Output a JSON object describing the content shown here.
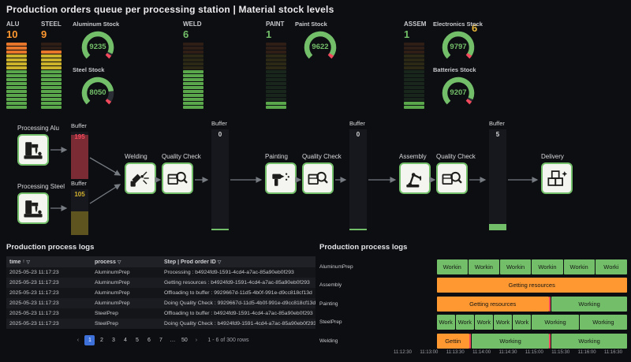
{
  "title": "Production orders queue per processing station | Material stock levels",
  "colors": {
    "green": "#73bf69",
    "orange": "#ff9830",
    "yellow": "#eab839",
    "red": "#f2495c",
    "blue": "#3d71d9",
    "gauge_track": "#2c3036",
    "seg_green": "#5aa64b",
    "seg_yellow": "#ccb22a",
    "seg_orange": "#e8762a"
  },
  "stats": [
    {
      "id": "alu",
      "label": "ALU",
      "value": "10",
      "color": "#ff9830",
      "ratio": 1.0
    },
    {
      "id": "steel",
      "label": "STEEL",
      "value": "9",
      "color": "#ff9830",
      "ratio": 0.9
    },
    {
      "id": "weld",
      "label": "WELD",
      "value": "6",
      "color": "#73bf69",
      "ratio": 0.6
    },
    {
      "id": "paint",
      "label": "PAINT",
      "value": "1",
      "color": "#73bf69",
      "ratio": 0.1
    },
    {
      "id": "assem",
      "label": "ASSEM",
      "value": "1",
      "color": "#73bf69",
      "ratio": 0.1
    }
  ],
  "extra_stat": {
    "value": "6",
    "color": "#eab839"
  },
  "gauges": [
    {
      "label": "Aluminum Stock",
      "value": 9235,
      "max": 10000
    },
    {
      "label": "Steel Stock",
      "value": 8050,
      "max": 10000
    },
    {
      "label": "Paint Stock",
      "value": 9622,
      "max": 10000
    },
    {
      "label": "Electronics Stock",
      "value": 9797,
      "max": 10000
    },
    {
      "label": "Batteries Stock",
      "value": 9207,
      "max": 10000
    }
  ],
  "flow": {
    "stations": [
      {
        "label": "Processing Alu",
        "icon": "milling-machine"
      },
      {
        "label": "Processing Steel",
        "icon": "milling-machine"
      },
      {
        "label": "Welding",
        "icon": "welding"
      },
      {
        "label": "Quality Check",
        "icon": "quality-check"
      },
      {
        "label": "Painting",
        "icon": "painting"
      },
      {
        "label": "Quality Check",
        "icon": "quality-check"
      },
      {
        "label": "Assembly",
        "icon": "assembly"
      },
      {
        "label": "Quality Check",
        "icon": "quality-check"
      },
      {
        "label": "Delivery",
        "icon": "delivery"
      }
    ],
    "buffers": [
      {
        "label": "Buffer",
        "value": "195",
        "value_color": "#f2495c",
        "fill_pct": 93,
        "fill_color": "#7a2b33",
        "baseline": false
      },
      {
        "label": "Buffer",
        "value": "105",
        "value_color": "#d2b12e",
        "fill_pct": 52,
        "fill_color": "#5d541f",
        "baseline": false
      },
      {
        "label": "Buffer",
        "value": "0",
        "value_color": "#d8d9da",
        "fill_pct": 0,
        "fill_color": "#73bf69",
        "baseline": true
      },
      {
        "label": "Buffer",
        "value": "0",
        "value_color": "#d8d9da",
        "fill_pct": 0,
        "fill_color": "#73bf69",
        "baseline": true
      },
      {
        "label": "Buffer",
        "value": "5",
        "value_color": "#d8d9da",
        "fill_pct": 5,
        "fill_color": "#73bf69",
        "baseline": true
      }
    ]
  },
  "logs_table": {
    "title": "Production process logs",
    "sort_icon": "↑",
    "filter_icon": "▽",
    "columns": [
      "time",
      "process",
      "Step | Prod order ID"
    ],
    "rows": [
      [
        "2025-05-23 11:17:23",
        "AluminumPrep",
        "Processing : b4924fd9-1591-4cd4-a7ac-85a90eb0f293"
      ],
      [
        "2025-05-23 11:17:23",
        "AluminumPrep",
        "Getting resources : b4924fd9-1591-4cd4-a7ac-85a90eb0f293"
      ],
      [
        "2025-05-23 11:17:23",
        "AluminumPrep",
        "Offloading to buffer : 9929667d-11d5-4b0f-991e-d9cc818cf13d"
      ],
      [
        "2025-05-23 11:17:23",
        "AluminumPrep",
        "Doing Quality Check : 9929667d-11d5-4b0f-991e-d9cc818cf13d"
      ],
      [
        "2025-05-23 11:17:23",
        "SteelPrep",
        "Offloading to buffer : b4924fd9-1591-4cd4-a7ac-85a90eb0f293"
      ],
      [
        "2025-05-23 11:17:23",
        "SteelPrep",
        "Doing Quality Check : b4924fd9-1591-4cd4-a7ac-85a90eb0f293"
      ]
    ],
    "pagination": {
      "prev": "‹",
      "next": "›",
      "pages": [
        "1",
        "2",
        "3",
        "4",
        "5",
        "6",
        "7",
        "…",
        "50"
      ],
      "active": "1",
      "summary": "1 - 6 of 300 rows"
    }
  },
  "chart_data": {
    "type": "state-timeline",
    "title": "Production process logs",
    "x_axis_labels": [
      "11:12:30",
      "11:13:00",
      "11:13:30",
      "11:14:00",
      "11:14:30",
      "11:15:00",
      "11:15:30",
      "11:16:00",
      "11:16:30"
    ],
    "x_axis_layout": {
      "start_pct": 16.8,
      "step_pct": 9.76
    },
    "states": {
      "Working": "#73bf69",
      "Getting resources": "#ff9830",
      "brief": "#f2495c"
    },
    "rows": [
      {
        "name": "AluminumPrep",
        "segments": [
          {
            "state": "Working",
            "label": "Workin",
            "start": 29.4,
            "end": 40.9
          },
          {
            "state": "Working",
            "label": "Workin",
            "start": 41.2,
            "end": 52.6
          },
          {
            "state": "Working",
            "label": "Workin",
            "start": 52.9,
            "end": 64.4
          },
          {
            "state": "Working",
            "label": "Workin",
            "start": 64.7,
            "end": 76.2
          },
          {
            "state": "Working",
            "label": "Workin",
            "start": 76.5,
            "end": 87.9
          },
          {
            "state": "Working",
            "label": "Worki",
            "start": 88.2,
            "end": 100
          }
        ]
      },
      {
        "name": "Assembly",
        "segments": [
          {
            "state": "Getting resources",
            "label": "Getting resources",
            "start": 29.4,
            "end": 100
          }
        ]
      },
      {
        "name": "Painting",
        "segments": [
          {
            "state": "Getting resources",
            "label": "Getting resources",
            "start": 29.4,
            "end": 71.0
          },
          {
            "state": "brief",
            "label": "",
            "start": 71.0,
            "end": 71.7
          },
          {
            "state": "Working",
            "label": "Working",
            "start": 72.0,
            "end": 100
          }
        ]
      },
      {
        "name": "SteelPrep",
        "segments": [
          {
            "state": "Working",
            "label": "Work",
            "start": 29.4,
            "end": 36.2
          },
          {
            "state": "Working",
            "label": "Work",
            "start": 36.5,
            "end": 43.2
          },
          {
            "state": "Working",
            "label": "Work",
            "start": 43.5,
            "end": 50.3
          },
          {
            "state": "Working",
            "label": "Work",
            "start": 50.6,
            "end": 57.3
          },
          {
            "state": "Working",
            "label": "Work",
            "start": 57.6,
            "end": 64.4
          },
          {
            "state": "Working",
            "label": "Working",
            "start": 64.7,
            "end": 82.1
          },
          {
            "state": "Working",
            "label": "Working",
            "start": 82.4,
            "end": 100
          }
        ]
      },
      {
        "name": "Welding",
        "segments": [
          {
            "state": "Getting resources",
            "label": "Gettin",
            "start": 29.4,
            "end": 41.5
          },
          {
            "state": "brief",
            "label": "",
            "start": 41.5,
            "end": 42.2
          },
          {
            "state": "Working",
            "label": "Working",
            "start": 42.5,
            "end": 71.0
          },
          {
            "state": "brief",
            "label": "",
            "start": 71.0,
            "end": 71.7
          },
          {
            "state": "Working",
            "label": "Working",
            "start": 72.0,
            "end": 100
          }
        ]
      }
    ]
  }
}
